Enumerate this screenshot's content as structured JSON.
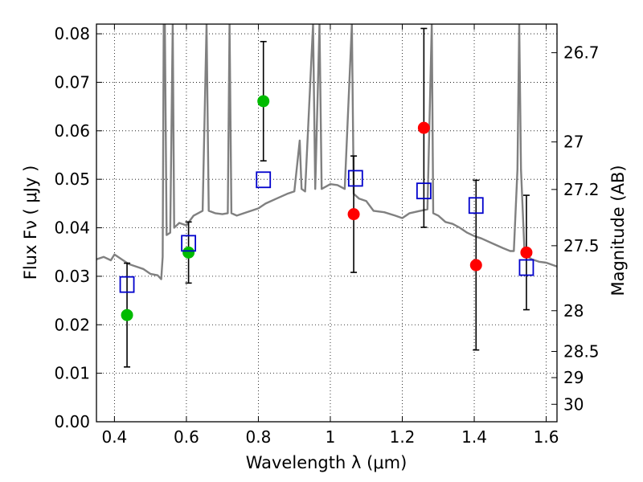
{
  "chart_data": {
    "type": "scatter",
    "xlabel": "Wavelength  λ (μm)",
    "ylabel": "Flux  Fν  ( μJy )",
    "y2label": "Magnitude (AB)",
    "xlim": [
      0.35,
      1.63
    ],
    "ylim": [
      0.0,
      0.082
    ],
    "grid": true,
    "x_ticks": [
      {
        "value": 0.4,
        "label": "0.4"
      },
      {
        "value": 0.6,
        "label": "0.6"
      },
      {
        "value": 0.8,
        "label": "0.8"
      },
      {
        "value": 1.0,
        "label": "1"
      },
      {
        "value": 1.2,
        "label": "1.2"
      },
      {
        "value": 1.4,
        "label": "1.4"
      },
      {
        "value": 1.6,
        "label": "1.6"
      }
    ],
    "y_ticks": [
      {
        "value": 0.0,
        "label": "0.00"
      },
      {
        "value": 0.01,
        "label": "0.01"
      },
      {
        "value": 0.02,
        "label": "0.02"
      },
      {
        "value": 0.03,
        "label": "0.03"
      },
      {
        "value": 0.04,
        "label": "0.04"
      },
      {
        "value": 0.05,
        "label": "0.05"
      },
      {
        "value": 0.06,
        "label": "0.06"
      },
      {
        "value": 0.07,
        "label": "0.07"
      },
      {
        "value": 0.08,
        "label": "0.08"
      }
    ],
    "y2_ticks": [
      {
        "flux": 0.0761,
        "label": "26.7"
      },
      {
        "flux": 0.0577,
        "label": "27"
      },
      {
        "flux": 0.0479,
        "label": "27.2"
      },
      {
        "flux": 0.0363,
        "label": "27.5"
      },
      {
        "flux": 0.0229,
        "label": "28"
      },
      {
        "flux": 0.0145,
        "label": "28.5"
      },
      {
        "flux": 0.0091,
        "label": "29"
      },
      {
        "flux": 0.0036,
        "label": "30"
      }
    ],
    "series": [
      {
        "name": "observed-green",
        "marker": "circle",
        "color": "#00bb00",
        "points": [
          {
            "x": 0.435,
            "y": 0.022,
            "err": 0.0107
          },
          {
            "x": 0.606,
            "y": 0.0349,
            "err": 0.0063
          },
          {
            "x": 0.814,
            "y": 0.0661,
            "err": 0.0123
          }
        ]
      },
      {
        "name": "observed-red",
        "marker": "circle",
        "color": "#ff0000",
        "points": [
          {
            "x": 1.065,
            "y": 0.0428,
            "err": 0.012
          },
          {
            "x": 1.26,
            "y": 0.0606,
            "err": 0.0205
          },
          {
            "x": 1.405,
            "y": 0.0323,
            "err": 0.0175
          },
          {
            "x": 1.545,
            "y": 0.0349,
            "err": 0.0118
          }
        ]
      },
      {
        "name": "model-photometry",
        "marker": "square",
        "color": "#0000cc",
        "points": [
          {
            "x": 0.435,
            "y": 0.0283
          },
          {
            "x": 0.606,
            "y": 0.0368
          },
          {
            "x": 0.814,
            "y": 0.0499
          },
          {
            "x": 1.07,
            "y": 0.0502
          },
          {
            "x": 1.26,
            "y": 0.0476
          },
          {
            "x": 1.405,
            "y": 0.0446
          },
          {
            "x": 1.545,
            "y": 0.0318
          }
        ]
      }
    ],
    "model_spectrum": {
      "name": "model-spectrum",
      "color": "#808080",
      "points": [
        [
          0.35,
          0.0335
        ],
        [
          0.37,
          0.034
        ],
        [
          0.39,
          0.0333
        ],
        [
          0.4,
          0.0345
        ],
        [
          0.42,
          0.0335
        ],
        [
          0.44,
          0.0325
        ],
        [
          0.46,
          0.032
        ],
        [
          0.48,
          0.0315
        ],
        [
          0.5,
          0.0305
        ],
        [
          0.52,
          0.0302
        ],
        [
          0.53,
          0.0294
        ],
        [
          0.534,
          0.034
        ],
        [
          0.537,
          0.082
        ],
        [
          0.54,
          0.082
        ],
        [
          0.545,
          0.0385
        ],
        [
          0.555,
          0.039
        ],
        [
          0.562,
          0.082
        ],
        [
          0.566,
          0.04
        ],
        [
          0.58,
          0.041
        ],
        [
          0.6,
          0.0405
        ],
        [
          0.62,
          0.0425
        ],
        [
          0.645,
          0.0435
        ],
        [
          0.656,
          0.082
        ],
        [
          0.662,
          0.0435
        ],
        [
          0.68,
          0.043
        ],
        [
          0.7,
          0.0428
        ],
        [
          0.715,
          0.043
        ],
        [
          0.72,
          0.082
        ],
        [
          0.725,
          0.043
        ],
        [
          0.74,
          0.0425
        ],
        [
          0.76,
          0.043
        ],
        [
          0.78,
          0.0435
        ],
        [
          0.8,
          0.044
        ],
        [
          0.82,
          0.045
        ],
        [
          0.85,
          0.046
        ],
        [
          0.88,
          0.047
        ],
        [
          0.9,
          0.0475
        ],
        [
          0.915,
          0.058
        ],
        [
          0.92,
          0.048
        ],
        [
          0.93,
          0.0475
        ],
        [
          0.952,
          0.082
        ],
        [
          0.958,
          0.048
        ],
        [
          0.97,
          0.082
        ],
        [
          0.976,
          0.048
        ],
        [
          1.0,
          0.049
        ],
        [
          1.02,
          0.0488
        ],
        [
          1.04,
          0.048
        ],
        [
          1.06,
          0.082
        ],
        [
          1.065,
          0.047
        ],
        [
          1.08,
          0.046
        ],
        [
          1.1,
          0.0455
        ],
        [
          1.12,
          0.0435
        ],
        [
          1.15,
          0.0432
        ],
        [
          1.18,
          0.0425
        ],
        [
          1.2,
          0.042
        ],
        [
          1.22,
          0.043
        ],
        [
          1.25,
          0.0435
        ],
        [
          1.27,
          0.0438
        ],
        [
          1.282,
          0.082
        ],
        [
          1.286,
          0.043
        ],
        [
          1.3,
          0.0425
        ],
        [
          1.32,
          0.0412
        ],
        [
          1.34,
          0.0408
        ],
        [
          1.36,
          0.04
        ],
        [
          1.38,
          0.039
        ],
        [
          1.4,
          0.0383
        ],
        [
          1.42,
          0.0378
        ],
        [
          1.45,
          0.0368
        ],
        [
          1.48,
          0.0358
        ],
        [
          1.5,
          0.0352
        ],
        [
          1.51,
          0.0352
        ],
        [
          1.52,
          0.052
        ],
        [
          1.525,
          0.082
        ],
        [
          1.53,
          0.052
        ],
        [
          1.54,
          0.0345
        ],
        [
          1.56,
          0.0335
        ],
        [
          1.58,
          0.033
        ],
        [
          1.6,
          0.0328
        ],
        [
          1.63,
          0.032
        ]
      ]
    }
  }
}
